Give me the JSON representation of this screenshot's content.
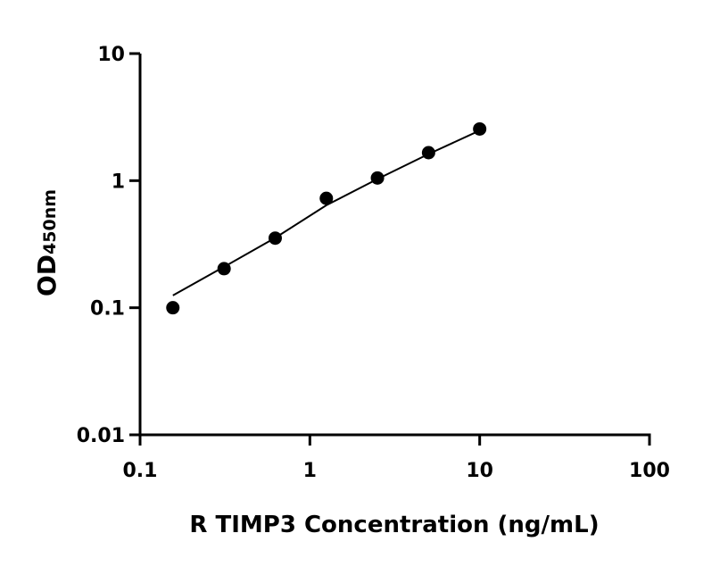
{
  "chart_data": {
    "type": "scatter",
    "title": "",
    "xlabel": "R TIMP3 Concentration (ng/mL)",
    "ylabel": "OD",
    "ylabel_subscript": "450nm",
    "x_scale": "log",
    "y_scale": "log",
    "xlim": [
      0.1,
      100
    ],
    "ylim": [
      0.01,
      10
    ],
    "x_ticks": [
      0.1,
      1,
      10,
      100
    ],
    "x_tick_labels": [
      "0.1",
      "1",
      "10",
      "100"
    ],
    "y_ticks": [
      0.01,
      0.1,
      1,
      10
    ],
    "y_tick_labels": [
      "0.01",
      "0.1",
      "1",
      "10"
    ],
    "grid": false,
    "points": {
      "x": [
        0.156,
        0.3125,
        0.625,
        1.25,
        2.5,
        5,
        10
      ],
      "y": [
        0.1,
        0.203,
        0.353,
        0.726,
        1.05,
        1.66,
        2.55
      ]
    },
    "fit_curve": {
      "x": [
        0.156,
        0.3125,
        0.625,
        1.25,
        2.5,
        5,
        10
      ],
      "y": [
        0.125,
        0.21,
        0.355,
        0.64,
        1.03,
        1.62,
        2.48
      ]
    },
    "color": "#000000"
  }
}
